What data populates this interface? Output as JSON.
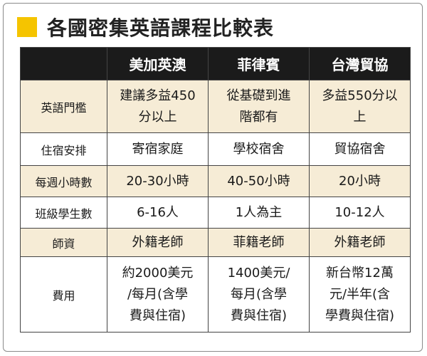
{
  "title": "各國密集英語課程比較表",
  "colors": {
    "accent_square": "#f5c400",
    "header_bg": "#1b1b1b",
    "shaded_row_bg": "#f6ecd6"
  },
  "table": {
    "columns": [
      "美加英澳",
      "菲律賓",
      "台灣貿協"
    ],
    "rows": [
      {
        "label": "英語門檻",
        "cells": [
          [
            "建議多益450",
            "分以上"
          ],
          [
            "從基礎到進",
            "階都有"
          ],
          [
            "多益550分以",
            "上"
          ]
        ]
      },
      {
        "label": "住宿安排",
        "cells": [
          [
            "寄宿家庭"
          ],
          [
            "學校宿舍"
          ],
          [
            "貿協宿舍"
          ]
        ]
      },
      {
        "label": "每週小時數",
        "cells": [
          [
            "20-30小時"
          ],
          [
            "40-50小時"
          ],
          [
            "20小時"
          ]
        ]
      },
      {
        "label": "班級學生數",
        "cells": [
          [
            "6-16人"
          ],
          [
            "1人為主"
          ],
          [
            "10-12人"
          ]
        ]
      },
      {
        "label": "師資",
        "cells": [
          [
            "外籍老師"
          ],
          [
            "菲籍老師"
          ],
          [
            "外籍老師"
          ]
        ]
      },
      {
        "label": "費用",
        "cells": [
          [
            "約2000美元",
            "/每月(含學",
            "費與住宿)"
          ],
          [
            "1400美元/",
            "每月(含學",
            "費與住宿)"
          ],
          [
            "新台幣12萬",
            "元/半年(含",
            "學費與住宿)"
          ]
        ]
      }
    ]
  }
}
